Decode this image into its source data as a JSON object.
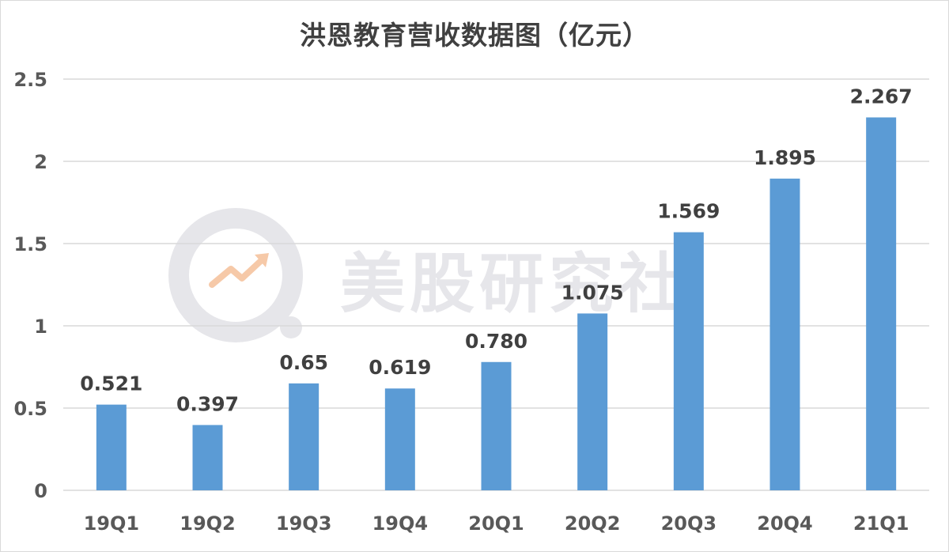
{
  "watermark": {
    "text": "美股研究社"
  },
  "colors": {
    "bar": "#5b9bd5",
    "grid": "#d9d9d9",
    "axis_text": "#595959",
    "label_text": "#404040",
    "watermark": "#e6e6ea",
    "watermark_arrow": "#f6c9a8"
  },
  "chart_data": {
    "type": "bar",
    "title": "洪恩教育营收数据图（亿元）",
    "xlabel": "",
    "ylabel": "",
    "categories": [
      "19Q1",
      "19Q2",
      "19Q3",
      "19Q4",
      "20Q1",
      "20Q2",
      "20Q3",
      "20Q4",
      "21Q1"
    ],
    "values": [
      0.521,
      0.397,
      0.65,
      0.619,
      0.78,
      1.075,
      1.569,
      1.895,
      2.267
    ],
    "data_labels": [
      "0.521",
      "0.397",
      "0.65",
      "0.619",
      "0.780",
      "1.075",
      "1.569",
      "1.895",
      "2.267"
    ],
    "ylim": [
      0,
      2.5
    ],
    "yticks": [
      0,
      0.5,
      1,
      1.5,
      2,
      2.5
    ],
    "ytick_labels": [
      "0",
      "0.5",
      "1",
      "1.5",
      "2",
      "2.5"
    ],
    "grid": true,
    "legend": "none"
  }
}
